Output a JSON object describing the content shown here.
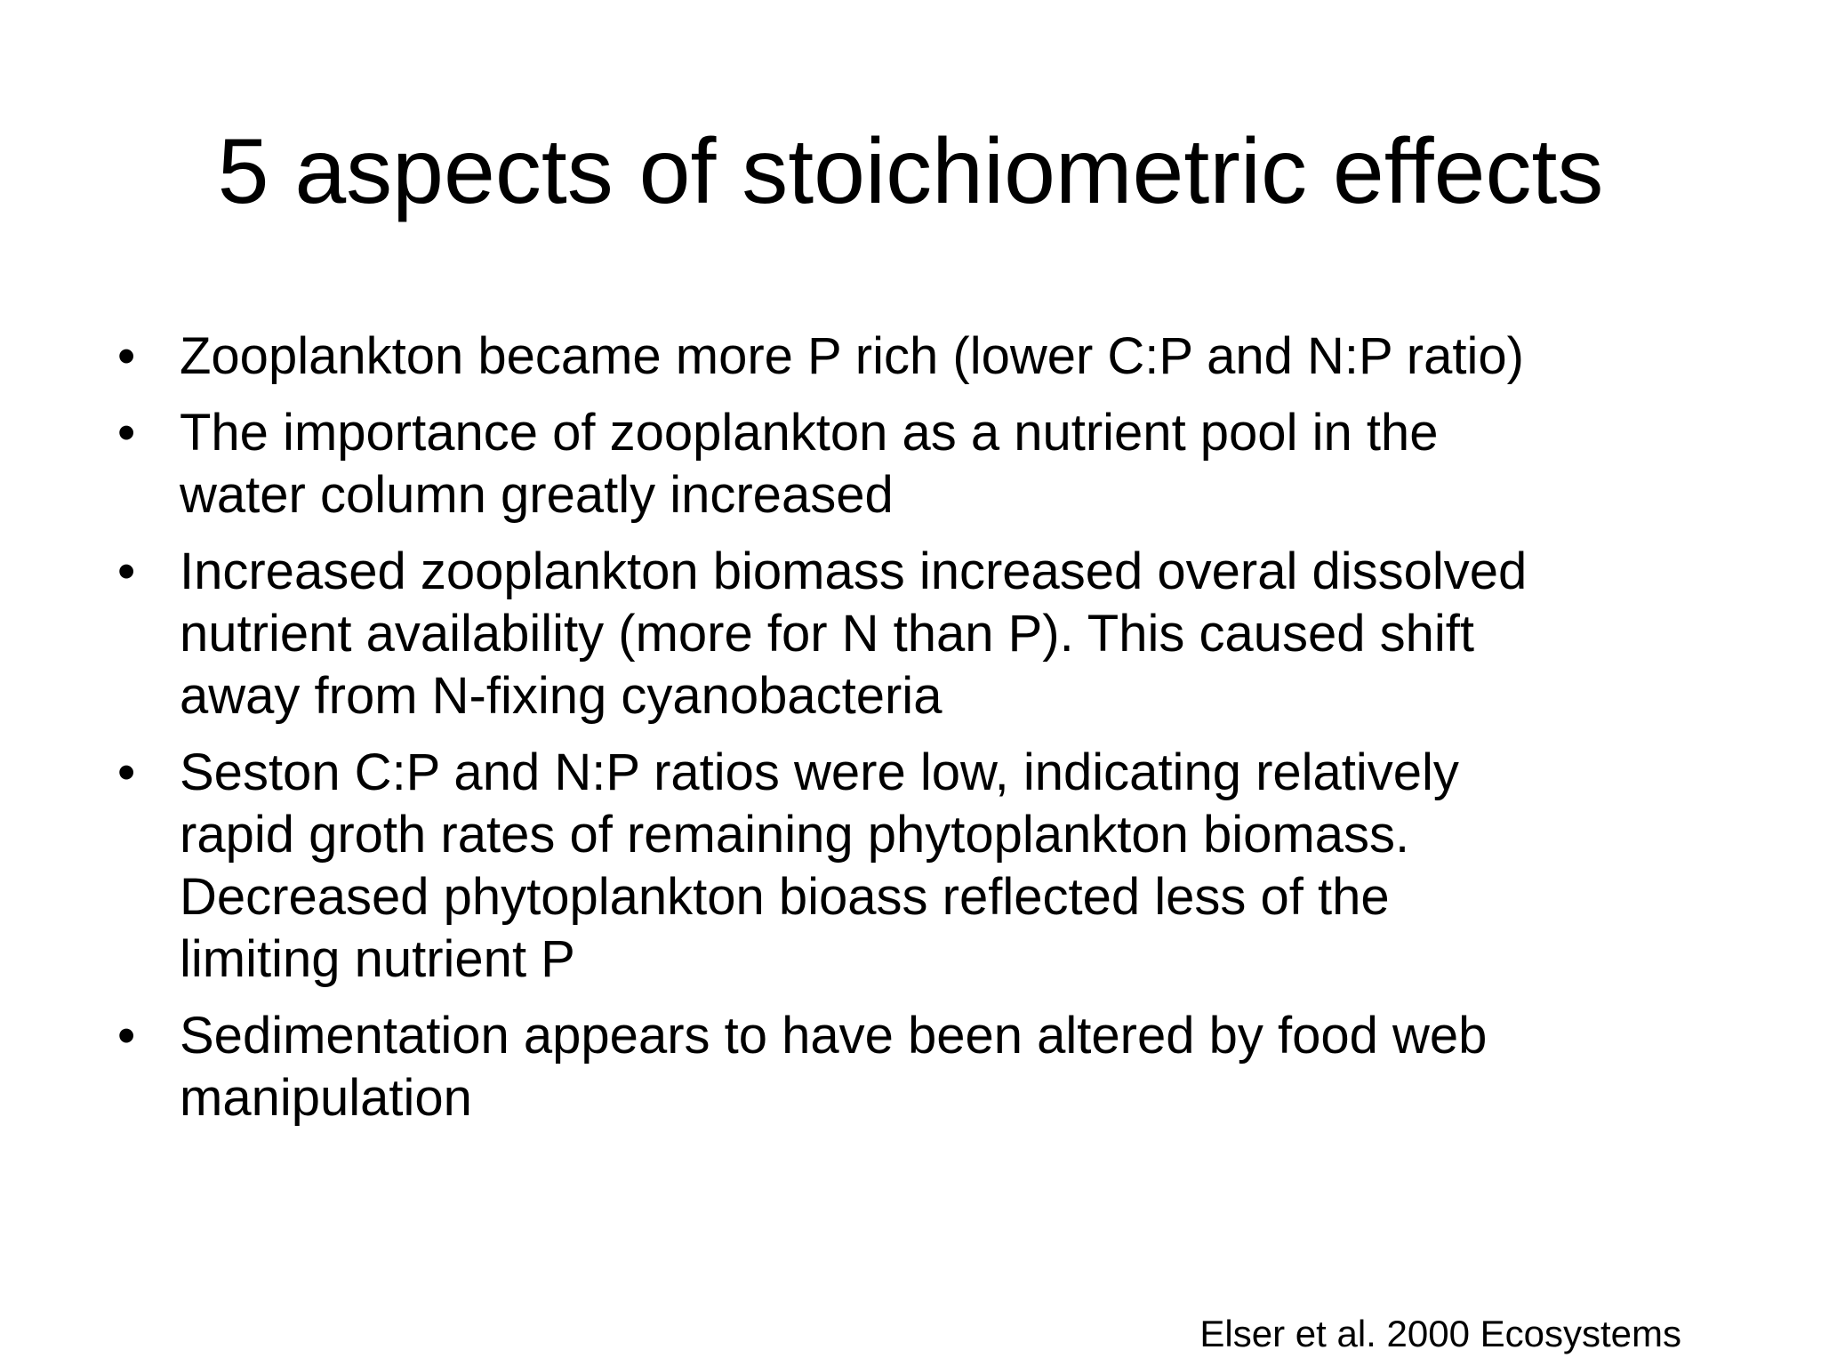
{
  "header": {
    "title": "5 aspects of stoichiometric effects"
  },
  "bullets": [
    {
      "lines": [
        "Zooplankton became more P rich (lower C:P and N:P ratio)"
      ]
    },
    {
      "lines": [
        "The importance of zooplankton as a nutrient pool in the",
        "water column greatly increased"
      ]
    },
    {
      "lines": [
        "Increased zooplankton biomass increased overal dissolved",
        "nutrient availability (more for N than P). This caused shift",
        "away from N-fixing cyanobacteria"
      ]
    },
    {
      "lines": [
        "Seston C:P and N:P ratios were low, indicating relatively",
        "rapid groth rates of remaining phytoplankton biomass.",
        "Decreased phytoplankton bioass reflected less of the",
        "limiting nutrient P"
      ]
    },
    {
      "lines": [
        "Sedimentation appears to have been altered by food web",
        "manipulation"
      ]
    }
  ],
  "footer": {
    "citation": "Elser et al. 2000 Ecosystems"
  }
}
